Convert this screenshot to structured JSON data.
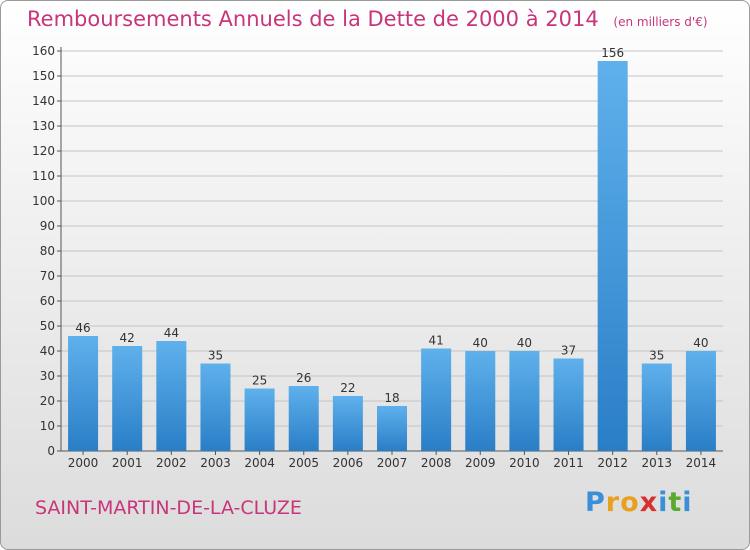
{
  "chart_data": {
    "type": "bar",
    "title": "Remboursements Annuels de la Dette de 2000 à 2014",
    "unit_label": "(en milliers d'€)",
    "categories": [
      "2000",
      "2001",
      "2002",
      "2003",
      "2004",
      "2005",
      "2006",
      "2007",
      "2008",
      "2009",
      "2010",
      "2011",
      "2012",
      "2013",
      "2014"
    ],
    "values": [
      46,
      42,
      44,
      35,
      25,
      26,
      22,
      18,
      41,
      40,
      40,
      37,
      156,
      35,
      40
    ],
    "ylim": [
      0,
      160
    ],
    "yticks": [
      0,
      10,
      20,
      30,
      40,
      50,
      60,
      70,
      80,
      90,
      100,
      110,
      120,
      130,
      140,
      150,
      160
    ],
    "grid": true,
    "bar_color": "#3f93d8"
  },
  "footer": {
    "municipality": "SAINT-MARTIN-DE-LA-CLUZE",
    "logo": {
      "text": "Proxiti",
      "letters": [
        "P",
        "r",
        "o",
        "x",
        "i",
        "t",
        "i"
      ],
      "colors": [
        "#3a8fd8",
        "#e8a020",
        "#e8a020",
        "#d83030",
        "#3a8fd8",
        "#5aaa30",
        "#3a8fd8"
      ]
    }
  },
  "theme": {
    "accent": "#c8357a"
  }
}
